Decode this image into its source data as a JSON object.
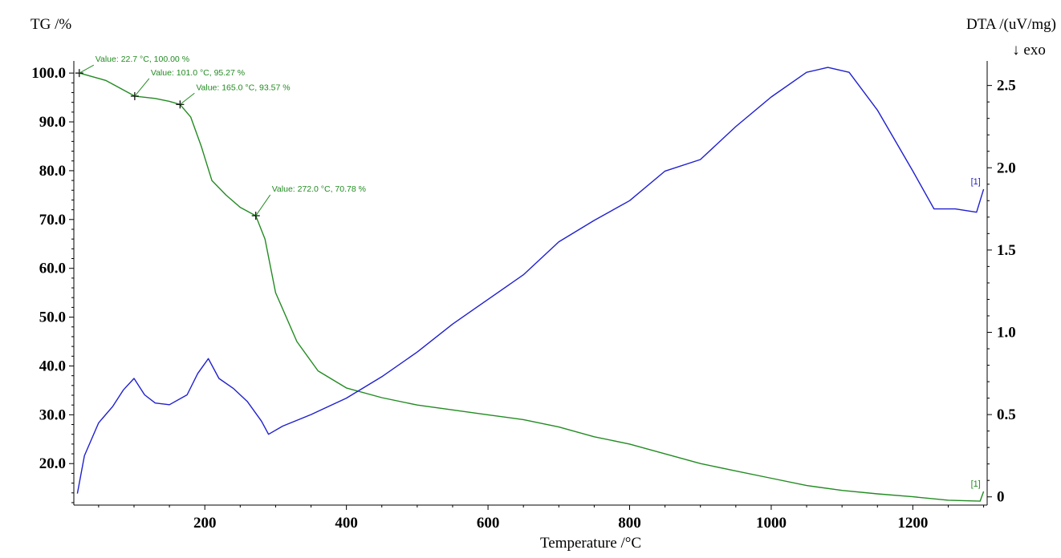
{
  "chart_data": {
    "type": "line",
    "title": "",
    "xlabel": "Temperature /°C",
    "ylabel_left": "TG /%",
    "ylabel_right": "DTA /(uV/mg)",
    "right_sublabel": "↓ exo",
    "xlim": [
      15,
      1305
    ],
    "ylim_left": [
      11.5,
      101.5
    ],
    "ylim_right": [
      -0.05,
      2.62
    ],
    "x_ticks": [
      200,
      400,
      600,
      800,
      1000,
      1200
    ],
    "x_tick_labels": [
      "200",
      "400",
      "600",
      "800",
      "1000",
      "1200"
    ],
    "y_left_ticks": [
      20,
      30,
      40,
      50,
      60,
      70,
      80,
      90,
      100
    ],
    "y_left_tick_labels": [
      "20.0",
      "30.0",
      "40.0",
      "50.0",
      "60.0",
      "70.0",
      "80.0",
      "90.0",
      "100.0"
    ],
    "y_right_ticks": [
      0,
      0.5,
      1.0,
      1.5,
      2.0,
      2.5
    ],
    "y_right_tick_labels": [
      "0",
      "0.5",
      "1.0",
      "1.5",
      "2.0",
      "2.5"
    ],
    "grid": false,
    "series": [
      {
        "axis": "left",
        "color": "#228b22",
        "end_label": "[1]",
        "x": [
          22.7,
          60,
          101,
          130,
          150,
          165,
          180,
          195,
          210,
          230,
          250,
          272,
          285,
          300,
          330,
          360,
          400,
          450,
          500,
          550,
          600,
          650,
          700,
          750,
          800,
          850,
          900,
          950,
          1000,
          1050,
          1100,
          1150,
          1200,
          1250,
          1295,
          1300
        ],
        "y": [
          100.0,
          98.5,
          95.27,
          94.8,
          94.2,
          93.57,
          91.0,
          85.0,
          78.0,
          75.0,
          72.5,
          70.78,
          66.0,
          55.0,
          45.0,
          39.0,
          35.5,
          33.5,
          32.0,
          31.0,
          30.0,
          29.0,
          27.5,
          25.5,
          24.0,
          22.0,
          20.0,
          18.5,
          17.0,
          15.5,
          14.5,
          13.8,
          13.2,
          12.5,
          12.3,
          14.3
        ]
      },
      {
        "axis": "right",
        "color": "#1f1fd0",
        "end_label": "[1]",
        "x": [
          20,
          30,
          50,
          70,
          85,
          100,
          115,
          130,
          150,
          175,
          190,
          205,
          220,
          240,
          260,
          280,
          290,
          310,
          350,
          400,
          450,
          500,
          550,
          600,
          650,
          700,
          750,
          800,
          850,
          900,
          950,
          1000,
          1050,
          1080,
          1110,
          1150,
          1200,
          1230,
          1260,
          1290,
          1300
        ],
        "y": [
          0.02,
          0.25,
          0.45,
          0.55,
          0.65,
          0.72,
          0.62,
          0.57,
          0.56,
          0.62,
          0.75,
          0.84,
          0.72,
          0.66,
          0.58,
          0.46,
          0.38,
          0.43,
          0.5,
          0.6,
          0.73,
          0.88,
          1.05,
          1.2,
          1.35,
          1.55,
          1.68,
          1.8,
          1.98,
          2.05,
          2.25,
          2.43,
          2.58,
          2.61,
          2.58,
          2.35,
          1.98,
          1.75,
          1.75,
          1.73,
          1.87
        ]
      }
    ],
    "annotations": [
      {
        "x": 22.7,
        "y": 100.0,
        "text": "Value: 22.7 °C, 100.00 %"
      },
      {
        "x": 101.0,
        "y": 95.27,
        "text": "Value: 101.0 °C, 95.27 %"
      },
      {
        "x": 165.0,
        "y": 93.57,
        "text": "Value: 165.0 °C, 93.57 %"
      },
      {
        "x": 272.0,
        "y": 70.78,
        "text": "Value: 272.0 °C, 70.78 %"
      }
    ]
  }
}
